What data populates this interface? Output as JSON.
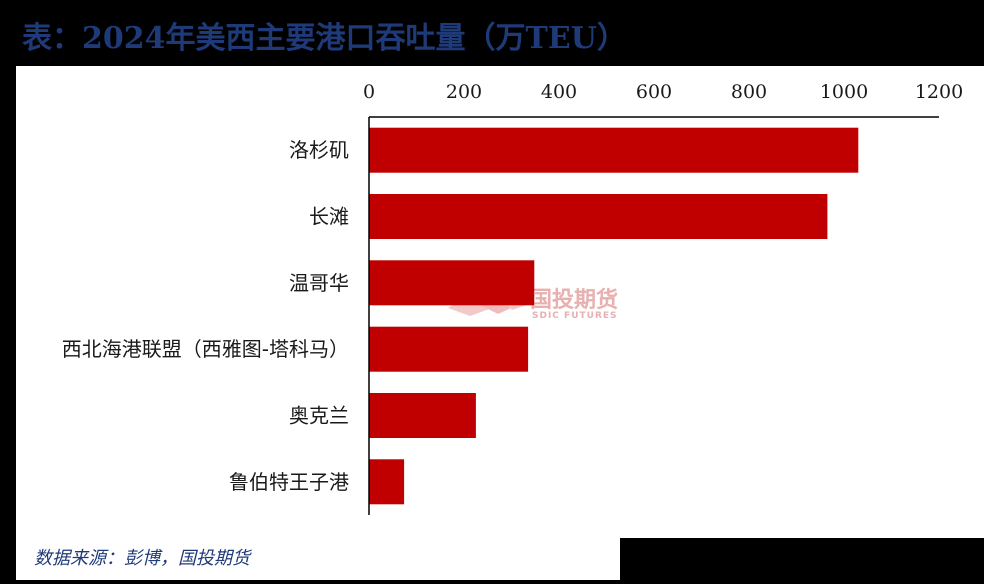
{
  "title": "表：2024年美西主要港口吞吐量（万TEU）",
  "source": "数据来源：彭博，国投期货",
  "watermark": {
    "name": "国投期货",
    "sub": "SDIC FUTURES",
    "color": "#e8b0b0"
  },
  "colors": {
    "bar": "#c00000",
    "title": "#1f3a78",
    "axis": "#000000"
  },
  "chart_data": {
    "type": "bar",
    "orientation": "horizontal",
    "categories": [
      "洛杉矶",
      "长滩",
      "温哥华",
      "西北海港联盟（西雅图-塔科马）",
      "奥克兰",
      "鲁伯特王子港"
    ],
    "values": [
      1030,
      965,
      348,
      335,
      225,
      74
    ],
    "title": "表：2024年美西主要港口吞吐量（万TEU）",
    "xlim": [
      0,
      1200
    ],
    "xticks": [
      0,
      200,
      400,
      600,
      800,
      1000,
      1200
    ],
    "x_axis_position": "top",
    "grid": false,
    "legend": "none"
  }
}
